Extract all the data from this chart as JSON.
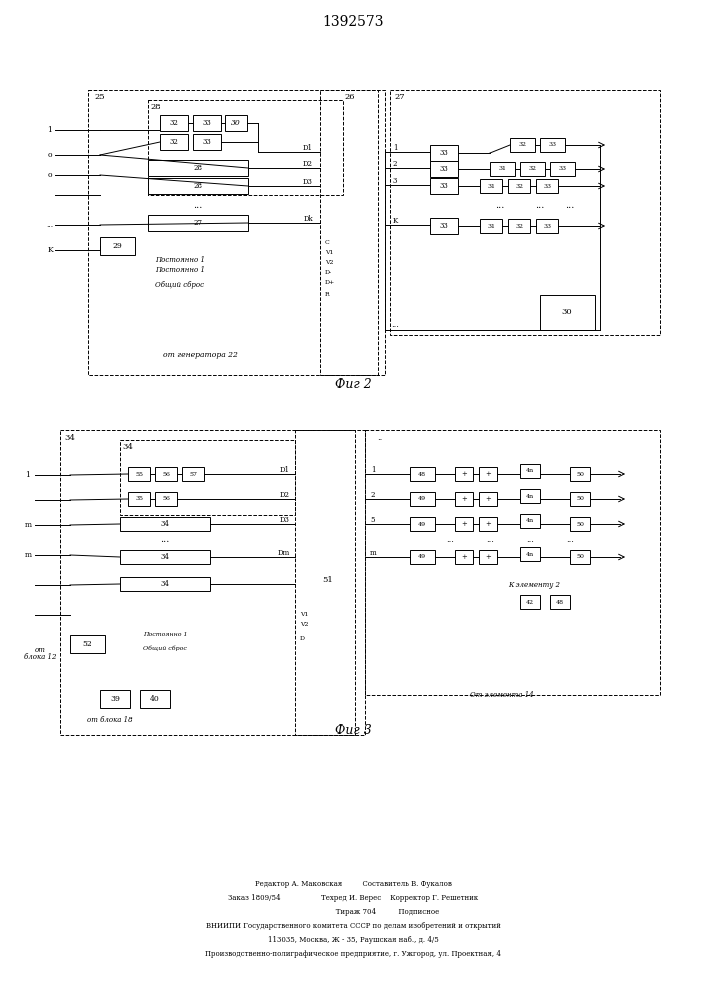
{
  "title": "1392573",
  "fig2_label": "Фиг 2",
  "fig3_label": "Фиг 3",
  "bg_color": "#ffffff",
  "line_color": "#000000",
  "box_color": "#ffffff",
  "text_color": "#000000",
  "footer_lines": [
    "Редактор А. Маковская         Составитель В. Фукалов",
    "Заказ 1809/54                  Техред И. Верес    Корректор Г. Решетник",
    "                               Тираж 704          Подписное",
    "ВНИИПИ Государственного комитета СССР по делам изобретений и открытий",
    "113035, Москва, Ж - 35, Раушская наб., д. 4/5",
    "Производственно-полиграфическое предприятие, г. Ужгород, ул. Проектная, 4"
  ]
}
